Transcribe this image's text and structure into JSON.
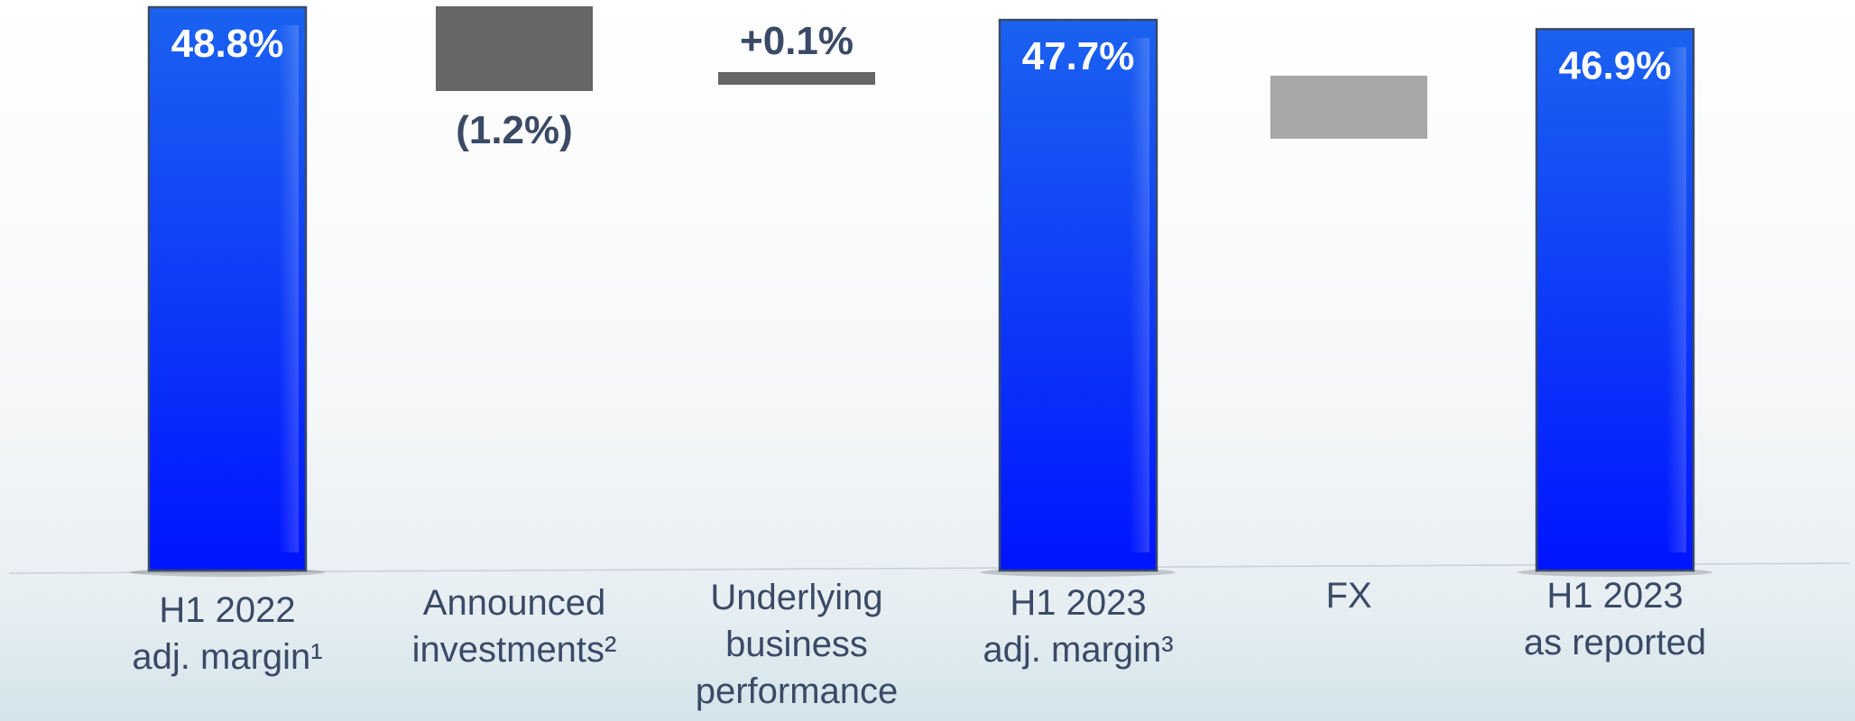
{
  "chart_data": {
    "type": "bar",
    "subtype": "waterfall",
    "title": "",
    "xlabel": "",
    "ylabel": "",
    "categories": [
      [
        "H1 2022",
        "adj. margin¹"
      ],
      [
        "Announced",
        "investments²"
      ],
      [
        "Underlying",
        "business",
        "performance"
      ],
      [
        "H1 2023",
        "adj. margin³"
      ],
      [
        "FX"
      ],
      [
        "H1 2023",
        "as reported"
      ]
    ],
    "steps": [
      {
        "kind": "total",
        "value": 48.8,
        "label": "48.8%",
        "color": "#0a3cf0"
      },
      {
        "kind": "delta",
        "value": -1.2,
        "label": "(1.2%)",
        "color": "#666666"
      },
      {
        "kind": "delta",
        "value": 0.1,
        "label": "+0.1%",
        "color": "#666666"
      },
      {
        "kind": "total",
        "value": 47.7,
        "label": "47.7%",
        "color": "#0a3cf0"
      },
      {
        "kind": "delta",
        "value": -0.8,
        "label": "",
        "color": "#a8a8a8"
      },
      {
        "kind": "total",
        "value": 46.9,
        "label": "46.9%",
        "color": "#0a3cf0"
      }
    ],
    "grid": false,
    "legend": "none",
    "colors": {
      "total": "#0a3cf0",
      "delta": "#666666",
      "fx": "#a8a8a8",
      "text": "#3a4a66",
      "value_on_bar": "#ffffff"
    }
  }
}
